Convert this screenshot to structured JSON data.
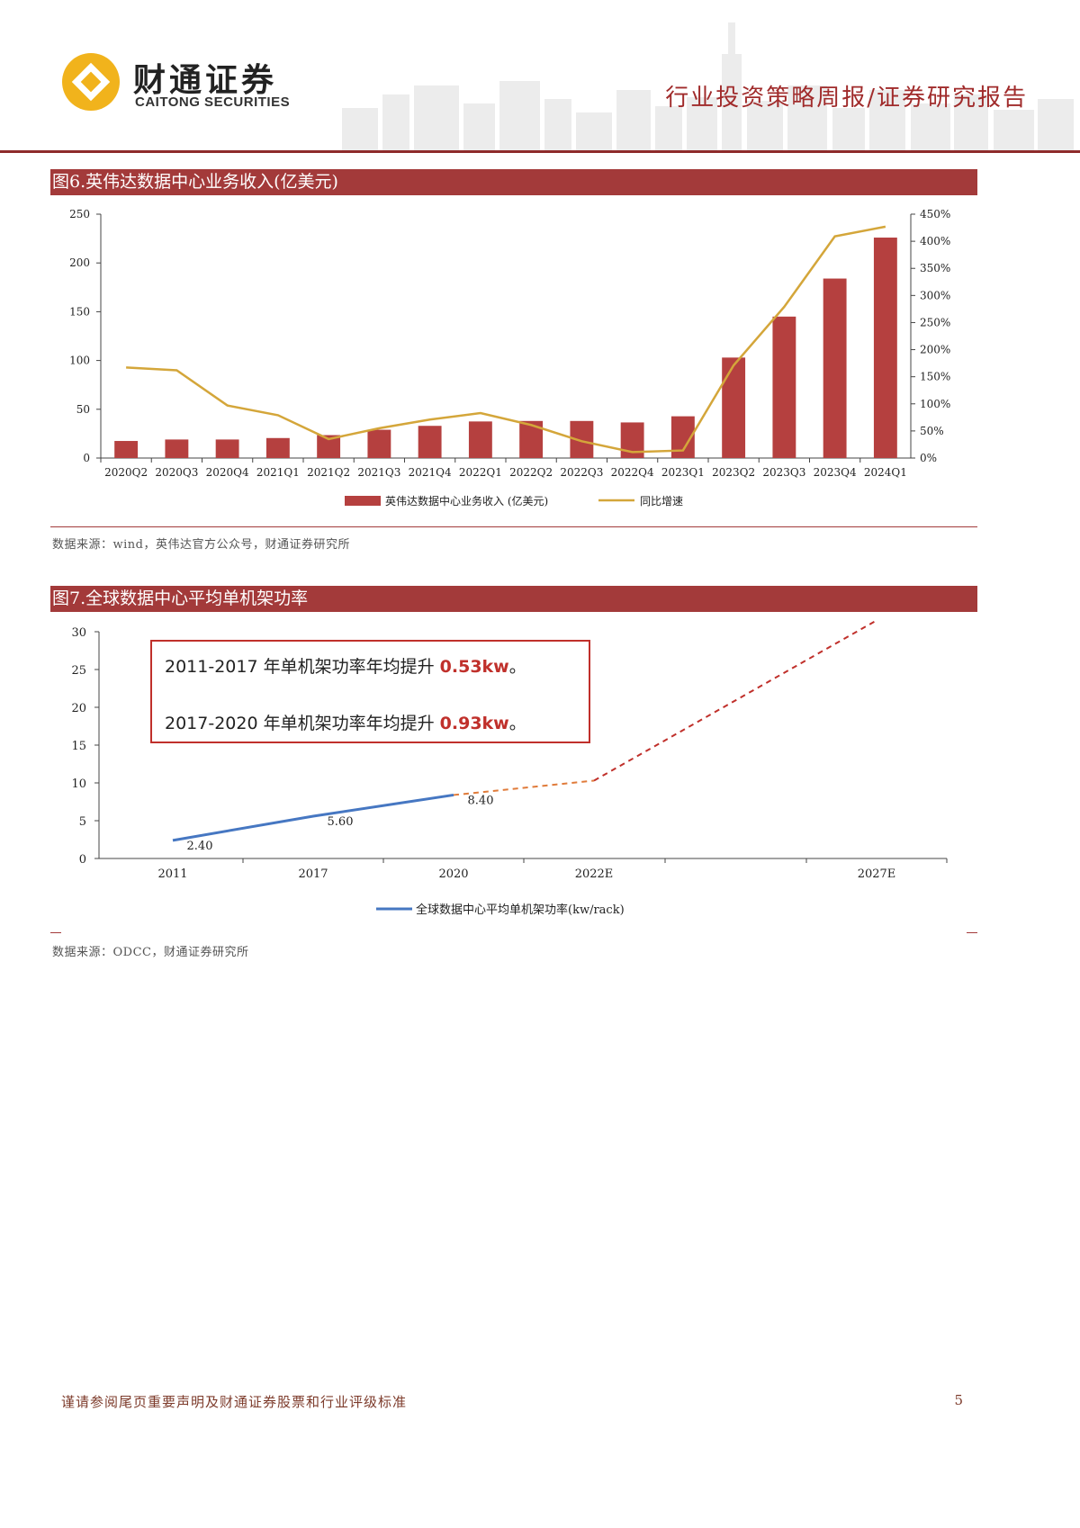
{
  "header": {
    "brand_cn": "财通证券",
    "brand_en": "CAITONG SECURITIES",
    "report_type": "行业投资策略周报/证券研究报告"
  },
  "figure6": {
    "title": "图6.英伟达数据中心业务收入(亿美元)",
    "source": "数据来源：wind，英伟达官方公众号，财通证券研究所"
  },
  "figure7": {
    "title": "图7.全球数据中心平均单机架功率",
    "source": "数据来源：ODCC，财通证券研究所",
    "callout": {
      "line1": {
        "prefix": "2011-2017 年单机架功率年均提升 ",
        "value": "0.53kw",
        "suffix": "。"
      },
      "line2": {
        "prefix": "2017-2020 年单机架功率年均提升 ",
        "value": "0.93kw",
        "suffix": "。"
      }
    }
  },
  "footer": {
    "note": "谨请参阅尾页重要声明及财通证券股票和行业评级标准",
    "page": "5"
  },
  "colors": {
    "brand": "#a33a3a",
    "bar": "#b5403f",
    "line": "#d4a63a",
    "blue": "#4677c2",
    "orange": "#e07b3a",
    "red": "#c0302b"
  },
  "chart_data": [
    {
      "type": "bar",
      "title": "图6.英伟达数据中心业务收入(亿美元)",
      "categories": [
        "2020Q2",
        "2020Q3",
        "2020Q4",
        "2021Q1",
        "2021Q2",
        "2021Q3",
        "2021Q4",
        "2022Q1",
        "2022Q2",
        "2022Q3",
        "2022Q4",
        "2023Q1",
        "2023Q2",
        "2023Q3",
        "2023Q4",
        "2024Q1"
      ],
      "series": [
        {
          "name": "英伟达数据中心业务收入 (亿美元)",
          "type": "bar",
          "axis": "left",
          "values": [
            17.5,
            19,
            19,
            20.5,
            23.5,
            29,
            33,
            37.5,
            38,
            38,
            36.5,
            42.8,
            103,
            145,
            184,
            226
          ]
        },
        {
          "name": "同比增速",
          "type": "line",
          "axis": "right",
          "values": [
            167,
            162,
            97,
            79,
            35,
            55,
            71,
            83,
            61,
            31,
            11,
            14,
            171,
            279,
            409,
            427
          ]
        }
      ],
      "ylim_left": [
        0,
        250
      ],
      "yticks_left": [
        "0",
        "50",
        "100",
        "150",
        "200",
        "250"
      ],
      "ylim_right": [
        0,
        450
      ],
      "yticks_right": [
        "0%",
        "50%",
        "100%",
        "150%",
        "200%",
        "250%",
        "300%",
        "350%",
        "400%",
        "450%"
      ]
    },
    {
      "type": "line",
      "title": "图7.全球数据中心平均单机架功率",
      "series": [
        {
          "name": "全球数据中心平均单机架功率(kw/rack)",
          "x": [
            2011,
            2017,
            2020
          ],
          "values": [
            2.4,
            5.6,
            8.4
          ],
          "labels": [
            "2.40",
            "5.60",
            "8.40"
          ]
        },
        {
          "name": "projection-orange",
          "x": [
            2020,
            2022
          ],
          "values": [
            8.4,
            10.3
          ]
        },
        {
          "name": "projection-red",
          "x": [
            2022,
            2027
          ],
          "values": [
            10.3,
            31.5
          ]
        }
      ],
      "xtick_labels": [
        "2011",
        "2017",
        "2020",
        "2022E",
        "2027E"
      ],
      "ylim": [
        0,
        30
      ],
      "yticks": [
        "0",
        "5",
        "10",
        "15",
        "20",
        "25",
        "30"
      ]
    }
  ]
}
